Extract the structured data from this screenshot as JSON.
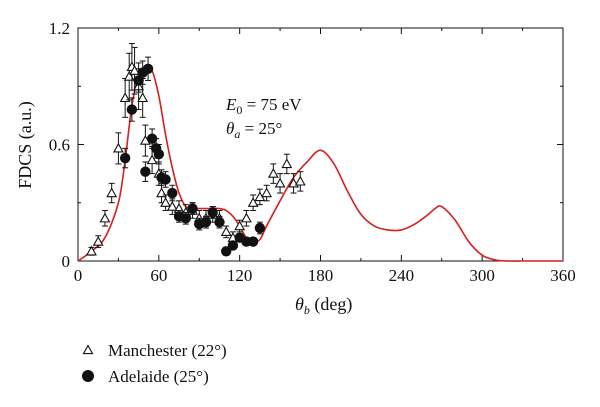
{
  "chart_data": {
    "type": "scatter",
    "xlabel_main": "θ",
    "xlabel_sub": "b",
    "xlabel_unit": " (deg)",
    "ylabel": "FDCS (a.u.)",
    "xlim": [
      0,
      360
    ],
    "ylim": [
      0,
      1.2
    ],
    "xticks": [
      "0",
      "60",
      "120",
      "180",
      "240",
      "300",
      "360"
    ],
    "yticks": [
      "0",
      "0.6",
      "1.2"
    ],
    "annotation": {
      "line1_sym": "E",
      "line1_sub": "0",
      "line1_rest": " = 75 eV",
      "line2_sym": "θ",
      "line2_sub": "a",
      "line2_rest": " = 25°"
    },
    "colors": {
      "theory": "#d61f1f",
      "markers": "#111111"
    },
    "series": [
      {
        "name": "Manchester (22°)",
        "kind": "open-triangle",
        "x": [
          10,
          15,
          20,
          25,
          30,
          35,
          38,
          40,
          42,
          45,
          48,
          50,
          55,
          60,
          62,
          65,
          70,
          75,
          80,
          85,
          90,
          95,
          100,
          105,
          110,
          115,
          120,
          125,
          130,
          135,
          140,
          145,
          150,
          155,
          160,
          165
        ],
        "y": [
          0.05,
          0.1,
          0.22,
          0.35,
          0.58,
          0.84,
          0.95,
          1.0,
          0.98,
          0.9,
          0.84,
          0.62,
          0.52,
          0.45,
          0.35,
          0.3,
          0.28,
          0.27,
          0.25,
          0.26,
          0.22,
          0.22,
          0.24,
          0.22,
          0.15,
          0.12,
          0.18,
          0.22,
          0.3,
          0.33,
          0.35,
          0.45,
          0.4,
          0.5,
          0.4,
          0.41
        ],
        "err": [
          0.02,
          0.03,
          0.04,
          0.05,
          0.08,
          0.1,
          0.12,
          0.12,
          0.12,
          0.12,
          0.1,
          0.08,
          0.07,
          0.06,
          0.05,
          0.04,
          0.04,
          0.04,
          0.04,
          0.04,
          0.04,
          0.04,
          0.04,
          0.04,
          0.03,
          0.03,
          0.03,
          0.04,
          0.04,
          0.04,
          0.04,
          0.05,
          0.05,
          0.05,
          0.05,
          0.05
        ]
      },
      {
        "name": "Adelaide (25°)",
        "kind": "filled-circle",
        "x": [
          35,
          40,
          45,
          48,
          50,
          52,
          55,
          58,
          60,
          62,
          65,
          70,
          75,
          80,
          85,
          90,
          95,
          100,
          105,
          110,
          115,
          120,
          125,
          130,
          135
        ],
        "y": [
          0.53,
          0.78,
          0.93,
          0.97,
          0.46,
          0.99,
          0.63,
          0.58,
          0.55,
          0.43,
          0.42,
          0.35,
          0.23,
          0.22,
          0.27,
          0.19,
          0.2,
          0.25,
          0.2,
          0.05,
          0.08,
          0.12,
          0.1,
          0.1,
          0.17
        ],
        "err": [
          0.05,
          0.06,
          0.06,
          0.06,
          0.05,
          0.06,
          0.05,
          0.05,
          0.05,
          0.04,
          0.04,
          0.04,
          0.03,
          0.03,
          0.03,
          0.03,
          0.03,
          0.03,
          0.03,
          0.02,
          0.02,
          0.02,
          0.02,
          0.02,
          0.03
        ]
      },
      {
        "kind": "line",
        "x": [
          0,
          10,
          20,
          30,
          35,
          40,
          45,
          50,
          55,
          60,
          65,
          70,
          75,
          80,
          85,
          90,
          95,
          100,
          105,
          110,
          115,
          120,
          125,
          130,
          135,
          140,
          150,
          160,
          170,
          180,
          190,
          200,
          210,
          220,
          230,
          240,
          250,
          260,
          265,
          270,
          280,
          290,
          300,
          310,
          320,
          330,
          340,
          350,
          360
        ],
        "y": [
          0.0,
          0.05,
          0.12,
          0.3,
          0.52,
          0.8,
          0.95,
          0.99,
          0.98,
          0.85,
          0.65,
          0.48,
          0.35,
          0.28,
          0.27,
          0.27,
          0.27,
          0.27,
          0.27,
          0.26,
          0.23,
          0.18,
          0.12,
          0.1,
          0.11,
          0.18,
          0.31,
          0.43,
          0.51,
          0.57,
          0.5,
          0.36,
          0.24,
          0.18,
          0.16,
          0.16,
          0.19,
          0.24,
          0.27,
          0.28,
          0.21,
          0.1,
          0.03,
          0.005,
          0.0,
          0.0,
          0.0,
          0.0,
          0.0
        ]
      }
    ],
    "legend": {
      "placement": "bottom-left",
      "items": [
        "Manchester (22°)",
        "Adelaide (25°)"
      ]
    }
  }
}
